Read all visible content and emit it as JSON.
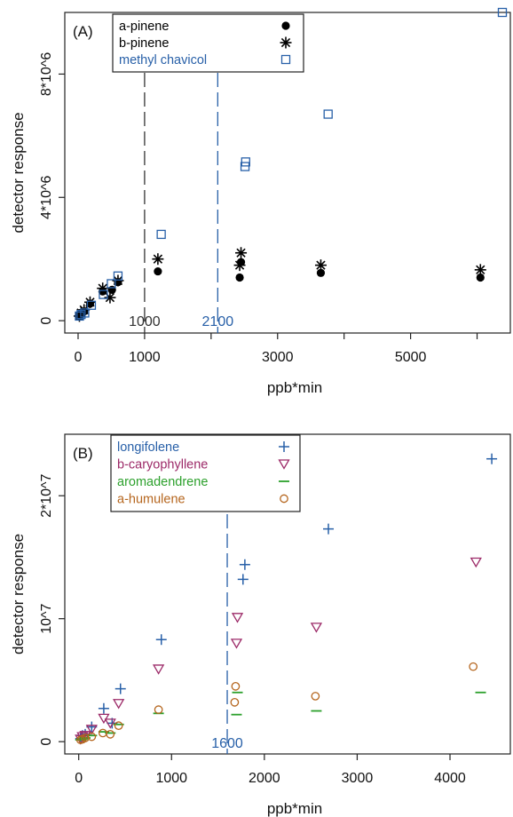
{
  "chart_data": [
    {
      "type": "scatter",
      "panel_label": "(A)",
      "xlabel": "ppb*min",
      "ylabel": "detector response",
      "xlim": [
        -200,
        6500
      ],
      "ylim": [
        -400000,
        10000000
      ],
      "xticks": [
        0,
        1000,
        3000,
        5000
      ],
      "xtick_labels": [
        "0",
        "1000",
        "3000",
        "5000"
      ],
      "xticks_unlabeled": [
        2000,
        4000,
        6000
      ],
      "yticks": [
        0,
        4000000,
        8000000
      ],
      "ytick_labels": [
        "0",
        "4*10^6",
        "8*10^6"
      ],
      "legend": {
        "position": "top-left"
      },
      "vlines": [
        {
          "x": 1000,
          "label": "1000",
          "color": "#333333",
          "dash": "16,6"
        },
        {
          "x": 2100,
          "label": "2100",
          "color": "#2860a8",
          "dash": "16,6"
        }
      ],
      "series": [
        {
          "name": "a-pinene",
          "marker": "dot",
          "color": "#000000",
          "x": [
            20,
            45,
            90,
            180,
            370,
            510,
            600,
            1200,
            2450,
            2430,
            3650,
            6050
          ],
          "y": [
            150000,
            250000,
            300000,
            550000,
            950000,
            1000000,
            1250000,
            1600000,
            1900000,
            1400000,
            1550000,
            1400000
          ]
        },
        {
          "name": "b-pinene",
          "marker": "asterisk",
          "color": "#000000",
          "x": [
            20,
            45,
            90,
            180,
            370,
            480,
            600,
            1200,
            2450,
            2430,
            3650,
            6050
          ],
          "y": [
            150000,
            250000,
            350000,
            600000,
            1050000,
            750000,
            1300000,
            2000000,
            2200000,
            1800000,
            1800000,
            1650000
          ]
        },
        {
          "name": "methyl chavicol",
          "marker": "square",
          "color": "#2860a8",
          "x": [
            20,
            45,
            100,
            200,
            380,
            500,
            600,
            1250,
            2510,
            2520,
            3760,
            6380
          ],
          "y": [
            150000,
            200000,
            250000,
            500000,
            850000,
            1200000,
            1450000,
            2800000,
            5000000,
            5150000,
            6700000,
            10000000
          ]
        }
      ]
    },
    {
      "type": "scatter",
      "panel_label": "(B)",
      "xlabel": "ppb*min",
      "ylabel": "detector response",
      "xlim": [
        -150,
        4650
      ],
      "ylim": [
        -1000000,
        25000000
      ],
      "xticks": [
        0,
        1000,
        2000,
        3000,
        4000
      ],
      "xtick_labels": [
        "0",
        "1000",
        "2000",
        "3000",
        "4000"
      ],
      "yticks": [
        0,
        10000000,
        20000000
      ],
      "ytick_labels": [
        "0",
        "10^7",
        "2*10^7"
      ],
      "legend": {
        "position": "top-left"
      },
      "vlines": [
        {
          "x": 1600,
          "label": "1600",
          "color": "#2860a8",
          "dash": "16,6"
        }
      ],
      "series": [
        {
          "name": "longifolene",
          "marker": "plus",
          "color": "#2860a8",
          "x": [
            20,
            40,
            70,
            140,
            270,
            360,
            450,
            890,
            1770,
            1790,
            2690,
            4450
          ],
          "y": [
            250000,
            500000,
            600000,
            1200000,
            2700000,
            1500000,
            4300000,
            8300000,
            13200000,
            14400000,
            17300000,
            23000000
          ]
        },
        {
          "name": "b-caryophyllene",
          "marker": "triangle-down",
          "color": "#9c2a68",
          "x": [
            20,
            40,
            70,
            140,
            270,
            340,
            430,
            860,
            1700,
            1710,
            2560,
            4280
          ],
          "y": [
            200000,
            400000,
            500000,
            1000000,
            1900000,
            1500000,
            3100000,
            5900000,
            8000000,
            10100000,
            9300000,
            14600000
          ]
        },
        {
          "name": "aromadendrene",
          "marker": "dash",
          "color": "#2ca02c",
          "x": [
            20,
            40,
            70,
            140,
            270,
            340,
            430,
            860,
            1700,
            1710,
            2560,
            4330
          ],
          "y": [
            150000,
            200000,
            300000,
            500000,
            800000,
            700000,
            1400000,
            2300000,
            2200000,
            4000000,
            2500000,
            4000000
          ]
        },
        {
          "name": "a-humulene",
          "marker": "circle",
          "color": "#b5651d",
          "x": [
            20,
            40,
            70,
            140,
            260,
            340,
            430,
            860,
            1680,
            1690,
            2550,
            4250
          ],
          "y": [
            150000,
            200000,
            300000,
            400000,
            700000,
            600000,
            1300000,
            2600000,
            3200000,
            4500000,
            3700000,
            6100000
          ]
        }
      ]
    }
  ]
}
